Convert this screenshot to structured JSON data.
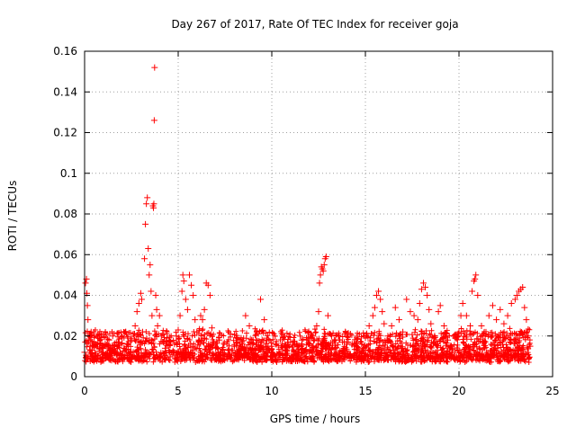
{
  "chart_data": {
    "type": "scatter",
    "title": "Day 267 of 2017, Rate Of TEC Index for receiver goja",
    "xlabel": "GPS time / hours",
    "ylabel": "ROTI / TECUs",
    "xlim": [
      0,
      25
    ],
    "ylim": [
      0,
      0.16
    ],
    "xticks": [
      0,
      5,
      10,
      15,
      20,
      25
    ],
    "yticks": [
      0,
      0.02,
      0.04,
      0.06,
      0.08,
      0.1,
      0.12,
      0.14,
      0.16
    ],
    "xtick_labels": [
      "0",
      "5",
      "10",
      "15",
      "20",
      "25"
    ],
    "ytick_labels": [
      "0",
      "0.02",
      "0.04",
      "0.06",
      "0.08",
      "0.1",
      "0.12",
      "0.14",
      "0.16"
    ],
    "grid": true,
    "marker": "+",
    "color": "#ff0000",
    "series": [
      {
        "name": "ROTI",
        "points": [
          [
            0.0,
            0.012
          ],
          [
            0.05,
            0.046
          ],
          [
            0.1,
            0.048
          ],
          [
            0.12,
            0.041
          ],
          [
            0.15,
            0.035
          ],
          [
            0.18,
            0.028
          ],
          [
            0.2,
            0.018
          ],
          [
            0.25,
            0.02
          ],
          [
            0.3,
            0.015
          ],
          [
            0.35,
            0.022
          ],
          [
            0.4,
            0.013
          ],
          [
            0.5,
            0.017
          ],
          [
            0.6,
            0.011
          ],
          [
            0.7,
            0.019
          ],
          [
            0.8,
            0.014
          ],
          [
            0.9,
            0.021
          ],
          [
            1.0,
            0.012
          ],
          [
            1.1,
            0.016
          ],
          [
            1.2,
            0.01
          ],
          [
            1.3,
            0.018
          ],
          [
            1.4,
            0.013
          ],
          [
            1.5,
            0.02
          ],
          [
            1.6,
            0.015
          ],
          [
            1.7,
            0.011
          ],
          [
            1.8,
            0.017
          ],
          [
            1.9,
            0.012
          ],
          [
            2.0,
            0.019
          ],
          [
            2.1,
            0.014
          ],
          [
            2.2,
            0.022
          ],
          [
            2.3,
            0.016
          ],
          [
            2.4,
            0.012
          ],
          [
            2.5,
            0.018
          ],
          [
            2.6,
            0.021
          ],
          [
            2.7,
            0.025
          ],
          [
            2.8,
            0.032
          ],
          [
            2.9,
            0.036
          ],
          [
            3.0,
            0.041
          ],
          [
            3.05,
            0.038
          ],
          [
            3.1,
            0.022
          ],
          [
            3.2,
            0.058
          ],
          [
            3.25,
            0.075
          ],
          [
            3.3,
            0.085
          ],
          [
            3.35,
            0.088
          ],
          [
            3.4,
            0.063
          ],
          [
            3.45,
            0.05
          ],
          [
            3.5,
            0.055
          ],
          [
            3.55,
            0.042
          ],
          [
            3.6,
            0.03
          ],
          [
            3.65,
            0.084
          ],
          [
            3.68,
            0.083
          ],
          [
            3.7,
            0.085
          ],
          [
            3.72,
            0.126
          ],
          [
            3.74,
            0.152
          ],
          [
            3.8,
            0.04
          ],
          [
            3.85,
            0.033
          ],
          [
            3.9,
            0.025
          ],
          [
            4.0,
            0.03
          ],
          [
            4.1,
            0.02
          ],
          [
            4.2,
            0.017
          ],
          [
            4.3,
            0.014
          ],
          [
            4.4,
            0.019
          ],
          [
            4.5,
            0.013
          ],
          [
            4.6,
            0.017
          ],
          [
            4.7,
            0.012
          ],
          [
            4.8,
            0.016
          ],
          [
            4.9,
            0.02
          ],
          [
            5.0,
            0.023
          ],
          [
            5.1,
            0.03
          ],
          [
            5.2,
            0.042
          ],
          [
            5.25,
            0.05
          ],
          [
            5.3,
            0.047
          ],
          [
            5.4,
            0.038
          ],
          [
            5.5,
            0.033
          ],
          [
            5.6,
            0.05
          ],
          [
            5.7,
            0.045
          ],
          [
            5.8,
            0.04
          ],
          [
            5.9,
            0.028
          ],
          [
            6.0,
            0.022
          ],
          [
            6.1,
            0.018
          ],
          [
            6.2,
            0.03
          ],
          [
            6.3,
            0.028
          ],
          [
            6.4,
            0.033
          ],
          [
            6.5,
            0.046
          ],
          [
            6.6,
            0.045
          ],
          [
            6.7,
            0.04
          ],
          [
            6.8,
            0.024
          ],
          [
            6.9,
            0.017
          ],
          [
            7.0,
            0.014
          ],
          [
            7.2,
            0.018
          ],
          [
            7.4,
            0.013
          ],
          [
            7.6,
            0.016
          ],
          [
            7.8,
            0.021
          ],
          [
            8.0,
            0.015
          ],
          [
            8.2,
            0.012
          ],
          [
            8.4,
            0.017
          ],
          [
            8.6,
            0.03
          ],
          [
            8.8,
            0.025
          ],
          [
            9.0,
            0.018
          ],
          [
            9.2,
            0.022
          ],
          [
            9.4,
            0.038
          ],
          [
            9.6,
            0.028
          ],
          [
            9.8,
            0.015
          ],
          [
            10.0,
            0.012
          ],
          [
            10.2,
            0.016
          ],
          [
            10.4,
            0.011
          ],
          [
            10.6,
            0.019
          ],
          [
            10.8,
            0.013
          ],
          [
            11.0,
            0.017
          ],
          [
            11.2,
            0.012
          ],
          [
            11.4,
            0.015
          ],
          [
            11.6,
            0.018
          ],
          [
            11.8,
            0.013
          ],
          [
            12.0,
            0.016
          ],
          [
            12.2,
            0.02
          ],
          [
            12.4,
            0.025
          ],
          [
            12.5,
            0.032
          ],
          [
            12.55,
            0.046
          ],
          [
            12.6,
            0.05
          ],
          [
            12.65,
            0.054
          ],
          [
            12.7,
            0.053
          ],
          [
            12.75,
            0.052
          ],
          [
            12.8,
            0.055
          ],
          [
            12.85,
            0.058
          ],
          [
            12.9,
            0.059
          ],
          [
            13.0,
            0.03
          ],
          [
            13.2,
            0.02
          ],
          [
            13.4,
            0.014
          ],
          [
            13.6,
            0.018
          ],
          [
            13.8,
            0.013
          ],
          [
            14.0,
            0.017
          ],
          [
            14.2,
            0.021
          ],
          [
            14.4,
            0.015
          ],
          [
            14.6,
            0.012
          ],
          [
            14.8,
            0.016
          ],
          [
            15.0,
            0.019
          ],
          [
            15.2,
            0.025
          ],
          [
            15.4,
            0.03
          ],
          [
            15.5,
            0.034
          ],
          [
            15.6,
            0.04
          ],
          [
            15.7,
            0.042
          ],
          [
            15.8,
            0.038
          ],
          [
            15.9,
            0.032
          ],
          [
            16.0,
            0.026
          ],
          [
            16.2,
            0.02
          ],
          [
            16.4,
            0.025
          ],
          [
            16.6,
            0.034
          ],
          [
            16.8,
            0.028
          ],
          [
            17.0,
            0.022
          ],
          [
            17.2,
            0.038
          ],
          [
            17.4,
            0.032
          ],
          [
            17.6,
            0.03
          ],
          [
            17.8,
            0.028
          ],
          [
            17.9,
            0.036
          ],
          [
            18.0,
            0.043
          ],
          [
            18.1,
            0.046
          ],
          [
            18.2,
            0.044
          ],
          [
            18.3,
            0.04
          ],
          [
            18.4,
            0.033
          ],
          [
            18.5,
            0.026
          ],
          [
            18.7,
            0.02
          ],
          [
            18.9,
            0.032
          ],
          [
            19.0,
            0.035
          ],
          [
            19.2,
            0.025
          ],
          [
            19.4,
            0.018
          ],
          [
            19.6,
            0.015
          ],
          [
            19.8,
            0.019
          ],
          [
            20.0,
            0.022
          ],
          [
            20.1,
            0.03
          ],
          [
            20.2,
            0.036
          ],
          [
            20.4,
            0.03
          ],
          [
            20.6,
            0.025
          ],
          [
            20.7,
            0.042
          ],
          [
            20.8,
            0.047
          ],
          [
            20.85,
            0.048
          ],
          [
            20.9,
            0.05
          ],
          [
            21.0,
            0.04
          ],
          [
            21.2,
            0.025
          ],
          [
            21.4,
            0.02
          ],
          [
            21.6,
            0.03
          ],
          [
            21.8,
            0.035
          ],
          [
            22.0,
            0.028
          ],
          [
            22.2,
            0.033
          ],
          [
            22.4,
            0.026
          ],
          [
            22.6,
            0.03
          ],
          [
            22.8,
            0.036
          ],
          [
            23.0,
            0.038
          ],
          [
            23.1,
            0.04
          ],
          [
            23.2,
            0.042
          ],
          [
            23.3,
            0.043
          ],
          [
            23.4,
            0.044
          ],
          [
            23.5,
            0.034
          ],
          [
            23.6,
            0.028
          ],
          [
            23.7,
            0.02
          ],
          [
            23.8,
            0.015
          ]
        ]
      }
    ]
  }
}
